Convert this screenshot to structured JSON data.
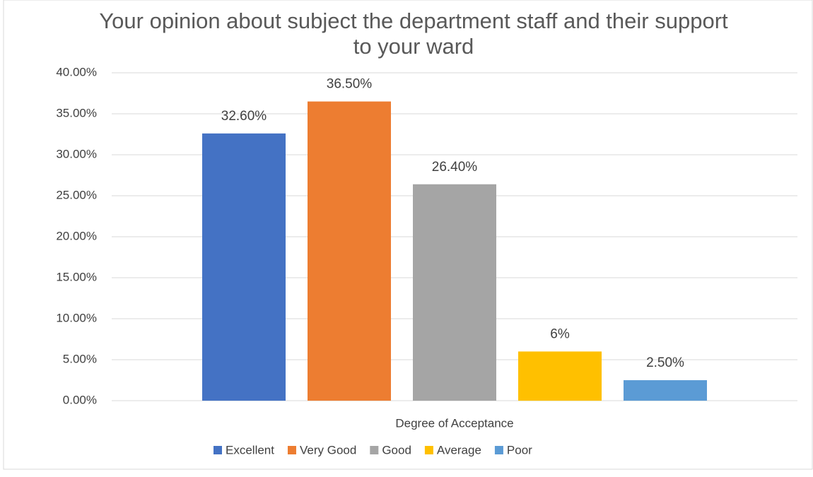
{
  "chart_data": {
    "type": "bar",
    "title": "Your opinion about subject the department staff and their support to your ward",
    "categories": [
      "Degree of Acceptance"
    ],
    "series": [
      {
        "name": "Excellent",
        "color": "#4472c4",
        "values": [
          32.6
        ],
        "value_labels": [
          "32.60%"
        ]
      },
      {
        "name": "Very Good",
        "color": "#ed7d31",
        "values": [
          36.5
        ],
        "value_labels": [
          "36.50%"
        ]
      },
      {
        "name": "Good",
        "color": "#a5a5a5",
        "values": [
          26.4
        ],
        "value_labels": [
          "26.40%"
        ]
      },
      {
        "name": "Average",
        "color": "#ffc000",
        "values": [
          6
        ],
        "value_labels": [
          "6%"
        ]
      },
      {
        "name": "Poor",
        "color": "#5b9bd5",
        "values": [
          2.5
        ],
        "value_labels": [
          "2.50%"
        ]
      }
    ],
    "ylim": [
      0,
      40
    ],
    "yticks": [
      {
        "value": 0,
        "label": "0.00%"
      },
      {
        "value": 5,
        "label": "5.00%"
      },
      {
        "value": 10,
        "label": "10.00%"
      },
      {
        "value": 15,
        "label": "15.00%"
      },
      {
        "value": 20,
        "label": "20.00%"
      },
      {
        "value": 25,
        "label": "25.00%"
      },
      {
        "value": 30,
        "label": "30.00%"
      },
      {
        "value": 35,
        "label": "35.00%"
      },
      {
        "value": 40,
        "label": "40.00%"
      }
    ],
    "grid": true,
    "legend": "bottom"
  }
}
